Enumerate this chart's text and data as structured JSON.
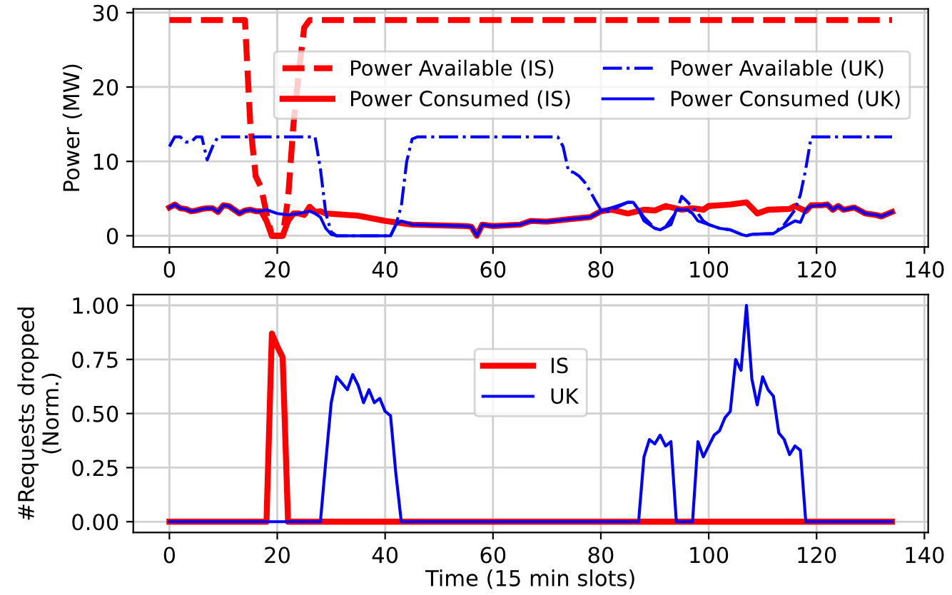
{
  "chart_data": [
    {
      "type": "line",
      "ylabel": "Power (MW)",
      "xlim": [
        -6.7,
        140.7
      ],
      "ylim": [
        -1.5,
        30.5
      ],
      "xticks": [
        0,
        20,
        40,
        60,
        80,
        100,
        120,
        140
      ],
      "yticks": [
        0,
        10,
        20,
        30
      ],
      "grid": true,
      "legend": "right",
      "series": [
        {
          "name": "Power Available (IS)",
          "color": "#ff0000",
          "line_style": "dashed",
          "x": [
            0,
            14,
            15,
            16,
            17,
            18,
            19,
            21,
            22,
            23,
            24,
            25,
            26,
            134
          ],
          "values": [
            29,
            29,
            15,
            8,
            6.5,
            3,
            0,
            0,
            5,
            15,
            22,
            28,
            29,
            29
          ]
        },
        {
          "name": "Power Consumed (IS)",
          "color": "#ff0000",
          "line_style": "solid",
          "x": [
            0,
            1,
            2,
            3,
            4,
            5,
            6,
            7,
            8,
            9,
            10,
            11,
            12,
            13,
            14,
            15,
            16,
            17,
            18,
            19,
            20,
            21,
            22,
            23,
            24,
            25,
            26,
            27,
            28,
            29,
            35,
            40,
            45,
            55,
            56,
            57,
            58,
            60,
            65,
            67,
            70,
            75,
            78,
            80,
            82,
            85,
            88,
            90,
            92,
            95,
            97,
            99,
            100,
            104,
            107,
            109,
            111,
            115,
            116,
            118,
            119,
            121,
            122,
            123,
            124,
            125,
            127,
            129,
            131,
            132,
            134
          ],
          "values": [
            3.8,
            4.2,
            3.7,
            3.6,
            3.3,
            3.4,
            3.6,
            3.7,
            3.7,
            3.2,
            4.1,
            4.0,
            3.5,
            3.0,
            3.4,
            3.5,
            3.3,
            3.3,
            2.0,
            0,
            0,
            0,
            2.0,
            3.0,
            3.0,
            2.8,
            3.9,
            3.2,
            3.3,
            3.0,
            2.7,
            2.0,
            1.5,
            1.3,
            1.2,
            0,
            1.5,
            1.3,
            1.5,
            2.0,
            1.9,
            2.3,
            2.5,
            3.3,
            3.5,
            3.0,
            3.5,
            3.4,
            4.0,
            3.5,
            3.7,
            3.5,
            4.0,
            4.2,
            4.5,
            3.0,
            3.5,
            3.6,
            4.0,
            3.3,
            4.1,
            4.1,
            4.2,
            3.5,
            4.0,
            3.5,
            3.8,
            3.0,
            2.8,
            2.6,
            3.2
          ]
        },
        {
          "name": "Power Available (UK)",
          "color": "#0000ff",
          "line_style": "dashdot",
          "x": [
            0,
            1,
            2,
            3,
            4,
            5,
            6,
            7,
            8,
            9,
            27,
            28,
            29,
            30,
            31,
            41,
            42,
            43,
            44,
            45,
            46,
            72,
            73,
            74,
            75,
            76,
            77,
            78,
            79,
            80,
            81,
            82,
            85,
            86,
            87,
            88,
            90,
            91,
            92,
            94,
            95,
            96,
            97,
            98,
            99,
            100,
            102,
            104,
            106,
            107,
            108,
            112,
            114,
            115,
            116,
            117,
            118,
            119,
            134
          ],
          "values": [
            12,
            13.3,
            13.3,
            12.6,
            12.6,
            13.3,
            13.3,
            10.2,
            12,
            13.3,
            13.3,
            9,
            3,
            0.5,
            0,
            0,
            1.5,
            4,
            10,
            13,
            13.3,
            13.3,
            12,
            8.7,
            8.5,
            8,
            7.2,
            6,
            4.7,
            3.5,
            3.2,
            3.5,
            4.5,
            4.5,
            3.5,
            2.5,
            1,
            0.8,
            1.2,
            3.2,
            5.3,
            4.6,
            3.8,
            3,
            2,
            1.5,
            1.0,
            0.8,
            0.2,
            0,
            0.2,
            0.3,
            1.5,
            2.5,
            3.5,
            5.5,
            9,
            13.3,
            13.3
          ]
        },
        {
          "name": "Power Consumed (UK)",
          "color": "#0000ff",
          "line_style": "solid",
          "x": [
            0,
            1,
            2,
            3,
            4,
            5,
            6,
            7,
            8,
            9,
            10,
            11,
            12,
            13,
            14,
            15,
            16,
            17,
            18,
            20,
            22,
            24,
            26,
            27,
            28,
            29,
            30,
            31,
            41,
            42,
            43,
            45,
            55,
            56,
            57,
            58,
            60,
            65,
            67,
            70,
            75,
            78,
            80,
            83,
            85,
            86,
            87,
            88,
            90,
            91,
            93,
            94,
            96,
            97,
            98,
            100,
            102,
            104,
            106,
            107,
            108,
            112,
            114,
            116,
            117,
            118,
            119,
            121,
            122,
            123,
            124,
            125,
            127,
            129,
            131,
            132,
            134
          ],
          "values": [
            3.8,
            4.2,
            3.7,
            3.6,
            3.3,
            3.4,
            3.6,
            3.7,
            3.7,
            3.2,
            4.1,
            4.0,
            3.5,
            3.0,
            3.4,
            3.5,
            3.3,
            3.3,
            3.5,
            3.0,
            2.8,
            3.0,
            3.3,
            3.0,
            2.5,
            1.0,
            0.2,
            0,
            0,
            1.5,
            2.0,
            1.5,
            1.3,
            1.2,
            0,
            1.5,
            1.3,
            1.5,
            2.0,
            1.9,
            2.3,
            2.5,
            3.3,
            4.0,
            4.5,
            4.5,
            3.5,
            2.0,
            1.0,
            0.8,
            1.5,
            3.5,
            3.5,
            3.0,
            2.0,
            1.5,
            1.0,
            0.8,
            0.2,
            0,
            0.2,
            0.3,
            1.2,
            2.0,
            1.8,
            3.5,
            4.0,
            4.1,
            4.2,
            3.5,
            4.0,
            3.5,
            3.8,
            3.0,
            2.8,
            2.6,
            3.2
          ]
        }
      ]
    },
    {
      "type": "line",
      "xlabel": "Time (15 min slots)",
      "ylabel": "#Requests dropped\n(Norm.)",
      "xlim": [
        -6.7,
        140.7
      ],
      "ylim": [
        -0.05,
        1.05
      ],
      "xticks": [
        0,
        20,
        40,
        60,
        80,
        100,
        120,
        140
      ],
      "yticks": [
        {
          "value": 0,
          "label": "0.00"
        },
        {
          "value": 0.25,
          "label": "0.25"
        },
        {
          "value": 0.5,
          "label": "0.50"
        },
        {
          "value": 0.75,
          "label": "0.75"
        },
        {
          "value": 1,
          "label": "1.00"
        }
      ],
      "grid": true,
      "legend": "center",
      "series": [
        {
          "name": "IS",
          "color": "#ff0000",
          "line_style": "solid",
          "x": [
            0,
            18,
            19,
            20,
            21,
            22,
            134
          ],
          "values": [
            0,
            0,
            0.87,
            0.81,
            0.76,
            0,
            0
          ]
        },
        {
          "name": "UK",
          "color": "#0000ff",
          "line_style": "solid",
          "x": [
            0,
            28,
            29,
            30,
            31,
            32,
            33,
            34,
            35,
            36,
            37,
            38,
            39,
            40,
            41,
            42,
            43,
            87,
            88,
            89,
            90,
            91,
            92,
            93,
            94,
            97,
            98,
            99,
            100,
            101,
            102,
            103,
            104,
            105,
            106,
            107,
            108,
            109,
            110,
            111,
            112,
            113,
            114,
            115,
            116,
            117,
            118,
            134
          ],
          "values": [
            0,
            0,
            0.28,
            0.55,
            0.67,
            0.64,
            0.61,
            0.68,
            0.63,
            0.55,
            0.61,
            0.55,
            0.57,
            0.51,
            0.49,
            0.22,
            0,
            0,
            0.3,
            0.38,
            0.36,
            0.4,
            0.35,
            0.37,
            0,
            0,
            0.37,
            0.3,
            0.35,
            0.4,
            0.42,
            0.48,
            0.51,
            0.75,
            0.7,
            1.0,
            0.66,
            0.54,
            0.67,
            0.61,
            0.58,
            0.41,
            0.38,
            0.31,
            0.35,
            0.33,
            0,
            0
          ]
        }
      ]
    }
  ]
}
